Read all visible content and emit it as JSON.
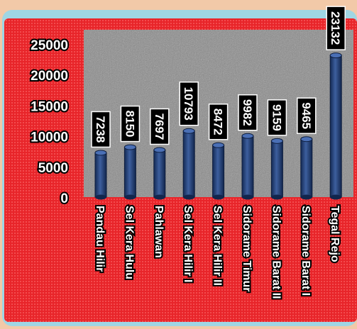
{
  "chart_data": {
    "type": "bar",
    "title": "",
    "xlabel": "",
    "ylabel": "",
    "categories": [
      "Pandau Hilir",
      "Sel Kera Hulu",
      "Pahlawan",
      "Sel Kera Hilir I",
      "Sel Kera Hilir II",
      "Sidorame Timur",
      "Sidorame Barat II",
      "Sidorame Barat I",
      "Tegal Rejo"
    ],
    "values": [
      7238,
      8150,
      7697,
      10793,
      8472,
      9982,
      9159,
      9465,
      23132
    ],
    "data_labels": [
      "7238",
      "8150",
      "7697",
      "10793",
      "8472",
      "9982",
      "9159",
      "9465",
      "23132"
    ],
    "yticks": [
      "0",
      "5000",
      "10000",
      "15000",
      "20000",
      "25000"
    ],
    "ytick_values": [
      0,
      5000,
      10000,
      15000,
      20000,
      25000
    ],
    "ylim": [
      0,
      25000
    ],
    "grid": false,
    "legend": "none",
    "colors": {
      "bar": "#1f3b73",
      "bar_highlight": "#4a6fb5",
      "chart_bg": "#e8252a",
      "plot_bg": "#9a9a9a",
      "frame": "#8fd0e0",
      "label_bg": "#000000",
      "label_text": "#ffffff",
      "page_bg": "#f2c9a8"
    }
  }
}
